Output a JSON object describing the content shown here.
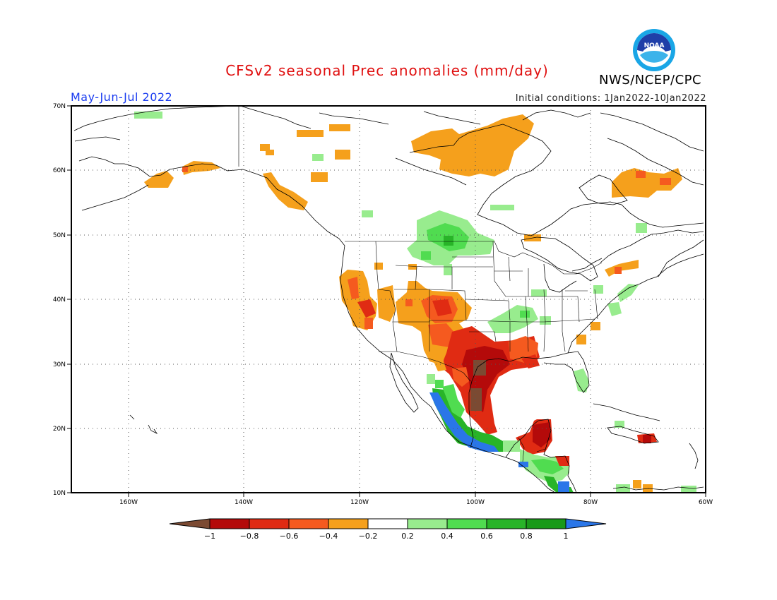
{
  "header": {
    "title": "CFSv2 seasonal Prec anomalies (mm/day)",
    "period": "May-Jun-Jul 2022",
    "initial_conditions": "Initial conditions: 1Jan2022-10Jan2022",
    "agency": "NWS/NCEP/CPC",
    "logo_text": "NOAA",
    "logo_icon": "noaa-logo-icon"
  },
  "map": {
    "projection": "cylindrical",
    "lon_range": [
      -170,
      -60
    ],
    "lat_range": [
      10,
      70
    ],
    "lon_ticks": [
      "160W",
      "140W",
      "120W",
      "100W",
      "80W",
      "60W"
    ],
    "lat_ticks": [
      "10N",
      "20N",
      "30N",
      "40N",
      "50N",
      "60N",
      "70N"
    ],
    "grid": "dotted"
  },
  "colorbar": {
    "labels": [
      "−1",
      "−0.8",
      "−0.6",
      "−0.4",
      "−0.2",
      "0.2",
      "0.4",
      "0.6",
      "0.8",
      "1"
    ],
    "colors": {
      "lt_m1": "#7b4a32",
      "m1_m08": "#b40a0a",
      "m08_m06": "#e02b13",
      "m06_m04": "#f55a1f",
      "m04_m02": "#f5a01c",
      "neutral": "#ffffff",
      "p02_p04": "#98ec8e",
      "p04_p06": "#50dc50",
      "p06_p08": "#28b428",
      "p08_p1": "#199a19",
      "gt_1": "#2a76e8"
    }
  }
}
